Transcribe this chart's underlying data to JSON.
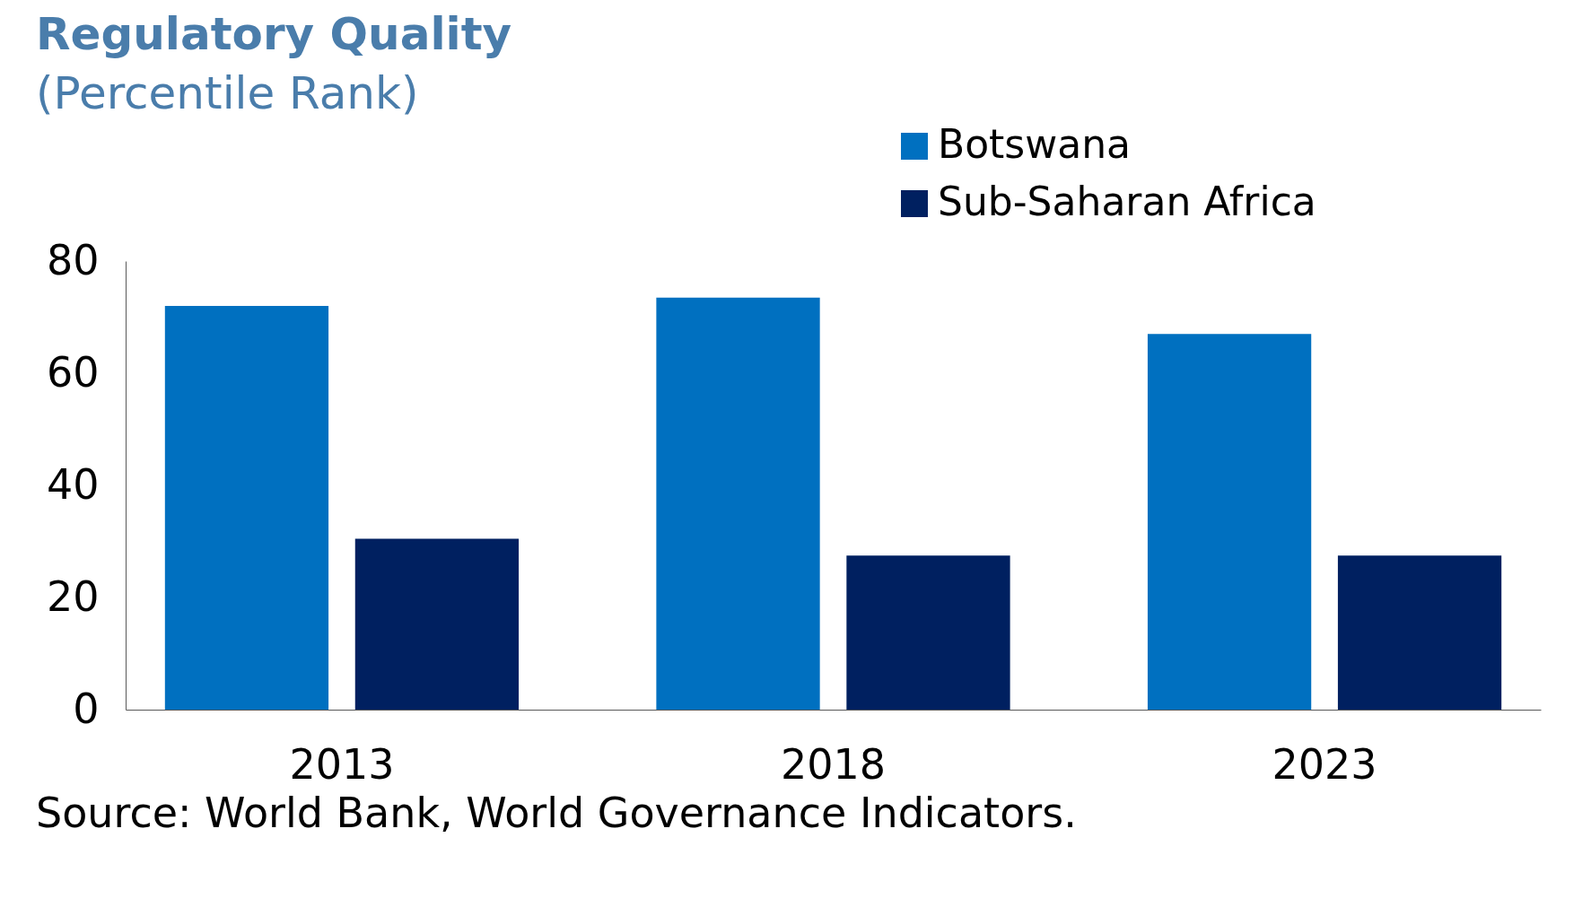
{
  "chart_data": {
    "type": "bar",
    "title": "Regulatory Quality",
    "subtitle": "(Percentile Rank)",
    "categories": [
      "2013",
      "2018",
      "2023"
    ],
    "series": [
      {
        "name": "Botswana",
        "color": "#0070c0",
        "values": [
          72,
          73.5,
          67
        ]
      },
      {
        "name": "Sub-Saharan Africa",
        "color": "#002060",
        "values": [
          30.5,
          27.5,
          27.5
        ]
      }
    ],
    "ylim": [
      0,
      80
    ],
    "yticks": [
      0,
      20,
      40,
      60,
      80
    ],
    "grid": false,
    "legend": "top right",
    "annotations": [
      "Source: World Bank, World Governance Indicators."
    ]
  }
}
